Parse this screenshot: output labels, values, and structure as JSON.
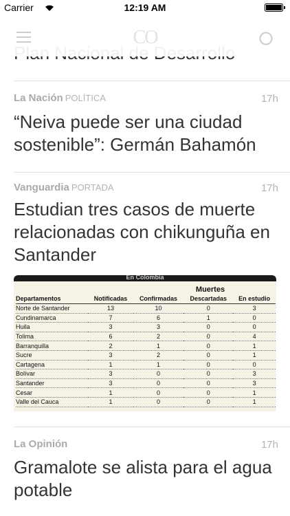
{
  "status_bar": {
    "carrier": "Carrier",
    "time": "12:19 AM"
  },
  "header": {
    "logo": "CO"
  },
  "previous_headline": "Plan Nacional de Desarrollo",
  "articles": [
    {
      "source": "La Nación",
      "section": "POLÍTICA",
      "time": "17h",
      "title": "“Neiva puede ser una ciudad sostenible”: Germán Bahamón"
    },
    {
      "source": "Vanguardia",
      "section": "PORTADA",
      "time": "17h",
      "title": "Estudian tres casos de muerte relacionadas con chikunguña en Santander",
      "image_table": {
        "caption": "En Colombia",
        "group_header": "Muertes",
        "columns": [
          "Departamentos",
          "Notificadas",
          "Confirmadas",
          "Descartadas",
          "En estudio"
        ],
        "rows": [
          [
            "Norte de Santander",
            "13",
            "10",
            "0",
            "3"
          ],
          [
            "Cundinamarca",
            "7",
            "6",
            "1",
            "0"
          ],
          [
            "Huila",
            "3",
            "3",
            "0",
            "0"
          ],
          [
            "Tolima",
            "6",
            "2",
            "0",
            "4"
          ],
          [
            "Barranquilla",
            "2",
            "1",
            "0",
            "1"
          ],
          [
            "Sucre",
            "3",
            "2",
            "0",
            "1"
          ],
          [
            "Cartagena",
            "1",
            "1",
            "0",
            "0"
          ],
          [
            "Bolívar",
            "3",
            "0",
            "0",
            "3"
          ],
          [
            "Santander",
            "3",
            "0",
            "0",
            "3"
          ],
          [
            "Cesar",
            "1",
            "0",
            "0",
            "1"
          ],
          [
            "Valle del Cauca",
            "1",
            "0",
            "0",
            "1"
          ]
        ]
      }
    },
    {
      "source": "La Opinión",
      "time": "17h",
      "title": "Gramalote se alista para el agua potable"
    }
  ]
}
